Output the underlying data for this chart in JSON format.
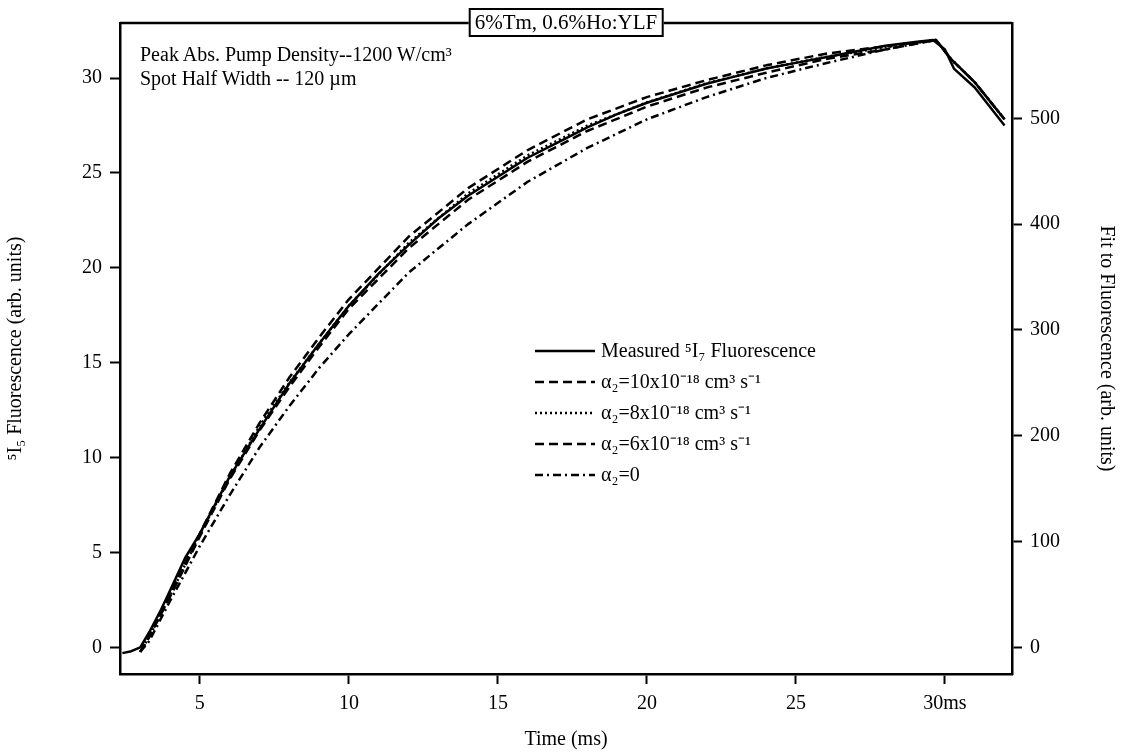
{
  "chart_data": {
    "type": "line",
    "title": "6%Tm, 0.6%Ho:YLF",
    "xlabel": "Time (ms)",
    "ylabel": "⁵I₅ Fluorescence (arb. units)",
    "y2label": "Fit to Fluorescence (arb. units)",
    "annotations": [
      "Peak Abs. Pump Density--1200 W/cm³",
      "Spot Half Width -- 120 µm"
    ],
    "xlim": [
      2.32,
      32.25
    ],
    "xticks": [
      5,
      10,
      15,
      20,
      25,
      {
        "value": 30,
        "label": "30ms"
      }
    ],
    "ylim": [
      -1.4,
      32.9
    ],
    "yticks": [
      0,
      5,
      10,
      15,
      20,
      25,
      30
    ],
    "y2lim": [
      -25,
      590
    ],
    "y2ticks": [
      0,
      100,
      200,
      300,
      400,
      500
    ],
    "grid": false,
    "legend": "right",
    "marker": "none",
    "series": [
      {
        "name": "Measured ⁵I₇ Fluorescence",
        "color": "#000000",
        "line_style": "solid",
        "x": [
          2.4,
          2.7,
          3.0,
          3.3,
          3.7,
          4.0,
          4.5,
          5,
          6,
          7,
          8,
          9,
          10,
          11,
          12,
          13,
          14,
          15,
          16,
          17,
          18,
          19,
          20,
          21,
          22,
          23,
          24,
          25,
          26,
          27,
          28,
          29,
          29.6,
          30,
          30.3,
          31,
          31.5,
          32
        ],
        "values": [
          -0.3,
          -0.2,
          0,
          0.8,
          2.0,
          3.0,
          4.7,
          6.0,
          9.0,
          11.5,
          13.9,
          16.0,
          18.0,
          19.7,
          21.2,
          22.6,
          23.8,
          24.8,
          25.8,
          26.6,
          27.4,
          28.1,
          28.7,
          29.2,
          29.7,
          30.1,
          30.5,
          30.8,
          31.1,
          31.4,
          31.7,
          31.9,
          32.0,
          31.5,
          30.5,
          29.5,
          28.5,
          27.5
        ]
      },
      {
        "name": "α₂=10x10⁻¹⁸ cm³ s⁻¹",
        "color": "#000000",
        "line_style": "dashed",
        "axis": "y2",
        "x": [
          3.0,
          3.3,
          4,
          5,
          6,
          7,
          8,
          9,
          10,
          12,
          14,
          16,
          18,
          20,
          22,
          24,
          26,
          28,
          29.7,
          30.2,
          31,
          32
        ],
        "values": [
          -4,
          10,
          51,
          108,
          164,
          212,
          255,
          293,
          329,
          388,
          434,
          470,
          499,
          520,
          536,
          550,
          561,
          568,
          574,
          556,
          534,
          499
        ]
      },
      {
        "name": "α₂=8x10⁻¹⁸ cm³ s⁻¹",
        "color": "#000000",
        "line_style": "dotted",
        "axis": "y2",
        "x": [
          3.0,
          3.3,
          4,
          5,
          6,
          7,
          8,
          9,
          10,
          12,
          14,
          16,
          18,
          20,
          22,
          24,
          26,
          28,
          29.7,
          30.2,
          31,
          32
        ],
        "values": [
          -4,
          10,
          49,
          107,
          160,
          209,
          250,
          287,
          323,
          382,
          429,
          465,
          493,
          515,
          533,
          547,
          558,
          567,
          574,
          556,
          534,
          499
        ]
      },
      {
        "name": "α₂=6x10⁻¹⁸ cm³ s⁻¹",
        "color": "#000000",
        "line_style": "dashed",
        "axis": "y2",
        "x": [
          3.0,
          3.3,
          4,
          5,
          6,
          7,
          8,
          9,
          10,
          12,
          14,
          16,
          18,
          20,
          22,
          24,
          26,
          28,
          29.7,
          30.2,
          31,
          32
        ],
        "values": [
          -4,
          10,
          48,
          105,
          159,
          205,
          246,
          284,
          320,
          377,
          423,
          459,
          488,
          511,
          529,
          543,
          556,
          565,
          574,
          556,
          534,
          499
        ]
      },
      {
        "name": "α₂=0",
        "color": "#000000",
        "line_style": "dashdot",
        "axis": "y2",
        "x": [
          3.0,
          3.3,
          4,
          5,
          6,
          7,
          8,
          9,
          10,
          12,
          14,
          16,
          18,
          20,
          22,
          24,
          26,
          28,
          29.7,
          30.2,
          31,
          32
        ],
        "values": [
          -4,
          6,
          44,
          96,
          144,
          189,
          228,
          264,
          296,
          354,
          400,
          440,
          472,
          499,
          520,
          538,
          552,
          565,
          574,
          556,
          534,
          499
        ]
      }
    ]
  }
}
